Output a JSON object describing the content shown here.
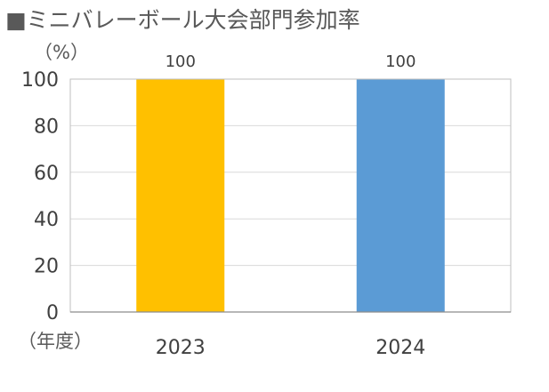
{
  "chart_data": {
    "type": "bar",
    "title": "■ミニバレーボール大会部門参加率",
    "ylabel": "（%）",
    "xlabel": "（年度）",
    "categories": [
      "2023",
      "2024"
    ],
    "values": [
      100,
      100
    ],
    "data_labels": [
      "100",
      "100"
    ],
    "bar_colors": [
      "#FFC000",
      "#5B9BD5"
    ],
    "ylim": [
      0,
      100
    ],
    "yticks": [
      0,
      20,
      40,
      60,
      80,
      100
    ],
    "grid": true,
    "legend": "none"
  }
}
